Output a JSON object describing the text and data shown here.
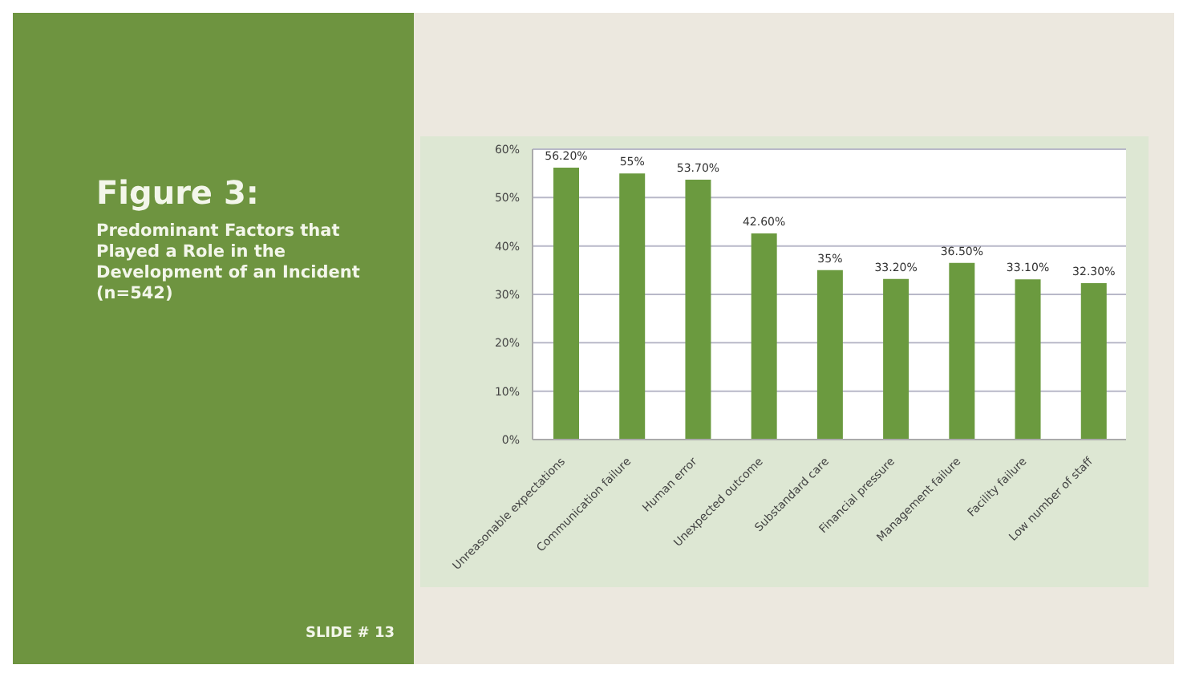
{
  "chart_data": {
    "type": "bar",
    "title": "Figure 3:",
    "subtitle": "Predominant Factors that Played a Role in the Development of an Incident (n=542)",
    "categories": [
      "Unreasonable expectations",
      "Communication failure",
      "Human error",
      "Unexpected outcome",
      "Substandard care",
      "Financial pressure",
      "Management failure",
      "Facility failure",
      "Low number of staff"
    ],
    "values": [
      56.2,
      55,
      53.7,
      42.6,
      35,
      33.2,
      36.5,
      33.1,
      32.3
    ],
    "value_labels": [
      "56.20%",
      "55%",
      "53.70%",
      "42.60%",
      "35%",
      "33.20%",
      "36.50%",
      "33.10%",
      "32.30%"
    ],
    "color": "#6b9a3f",
    "ylim": [
      0,
      60
    ],
    "yticks": [
      {
        "value": 0,
        "label": "0%"
      },
      {
        "value": 10,
        "label": "10%"
      },
      {
        "value": 20,
        "label": "20%"
      },
      {
        "value": 30,
        "label": "30%"
      },
      {
        "value": 40,
        "label": "40%"
      },
      {
        "value": 50,
        "label": "50%"
      },
      {
        "value": 60,
        "label": "60%"
      }
    ],
    "grid": "y",
    "legend": false,
    "annotations": [
      "SLIDE # 13"
    ]
  }
}
